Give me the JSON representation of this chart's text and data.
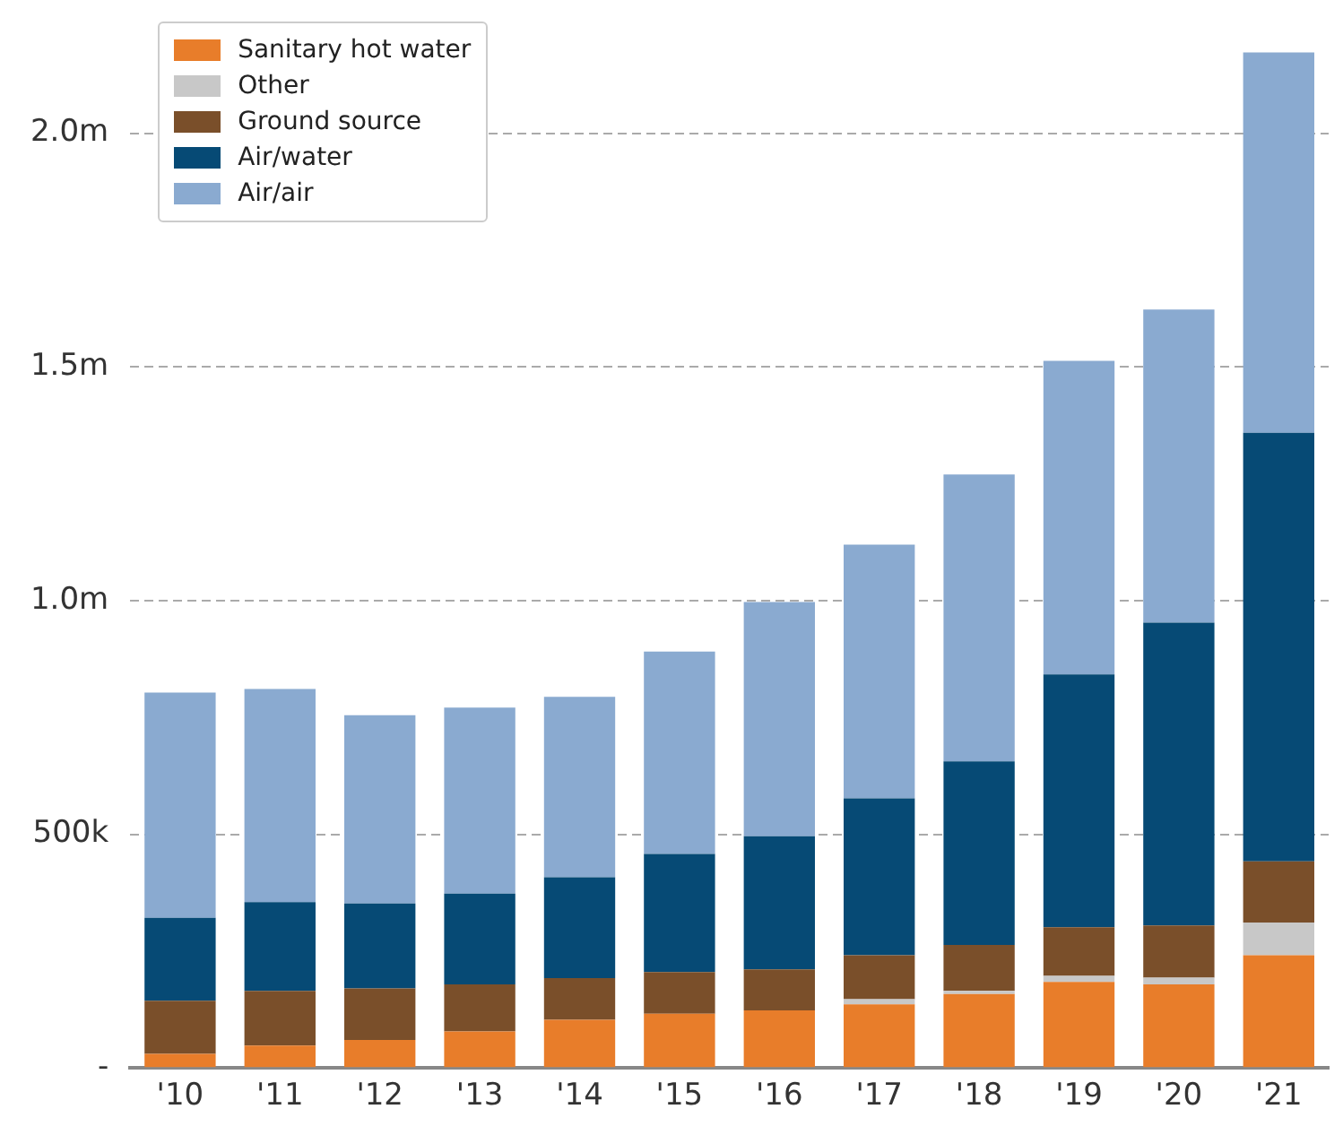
{
  "chart_data": {
    "type": "bar",
    "stacked": true,
    "categories": [
      "'10",
      "'11",
      "'12",
      "'13",
      "'14",
      "'15",
      "'16",
      "'17",
      "'18",
      "'19",
      "'20",
      "'21"
    ],
    "series": [
      {
        "name": "Sanitary hot water",
        "color": "#e87d2a",
        "values": [
          30000,
          48000,
          60000,
          78000,
          103000,
          116000,
          123000,
          136000,
          158000,
          184000,
          179000,
          241000
        ]
      },
      {
        "name": "Other",
        "color": "#c8c8c8",
        "values": [
          0,
          0,
          0,
          0,
          0,
          null,
          null,
          11000,
          7000,
          13000,
          14000,
          70000
        ]
      },
      {
        "name": "Ground source",
        "color": "#7a4f2a",
        "values": [
          114000,
          117000,
          110000,
          101000,
          89000,
          89000,
          88000,
          94000,
          98000,
          104000,
          112000,
          131000
        ]
      },
      {
        "name": "Air/water",
        "color": "#064a75",
        "values": [
          177000,
          190000,
          182000,
          194000,
          216000,
          253000,
          285000,
          336000,
          393000,
          541000,
          648000,
          917000
        ]
      },
      {
        "name": "Air/air",
        "color": "#8aaad0",
        "values": [
          482000,
          456000,
          403000,
          398000,
          386000,
          433000,
          501000,
          543000,
          614000,
          671000,
          670000,
          814000
        ]
      }
    ],
    "ylim": [
      0,
      2200000
    ],
    "yticks": [
      {
        "value": 0,
        "label": "-"
      },
      {
        "value": 500000,
        "label": "500k"
      },
      {
        "value": 1000000,
        "label": "1.0m"
      },
      {
        "value": 1500000,
        "label": "1.5m"
      },
      {
        "value": 2000000,
        "label": "2.0m"
      }
    ],
    "grid": "y",
    "legend": "top left"
  }
}
